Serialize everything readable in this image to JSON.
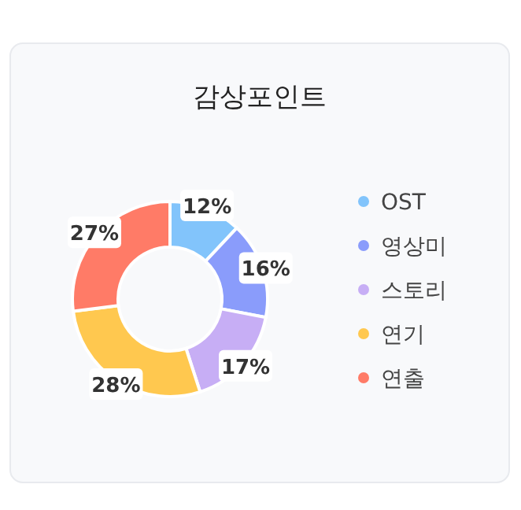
{
  "chart_data": {
    "type": "donut",
    "title": "감상포인트",
    "categories": [
      "OST",
      "영상미",
      "스토리",
      "연기",
      "연출"
    ],
    "values": [
      12,
      16,
      17,
      28,
      27
    ],
    "colors": [
      "#82c4fb",
      "#8a9cfb",
      "#c7aef5",
      "#ffc84f",
      "#ff7b67"
    ],
    "value_labels": [
      "12%",
      "16%",
      "17%",
      "28%",
      "27%"
    ],
    "legend": "right"
  }
}
